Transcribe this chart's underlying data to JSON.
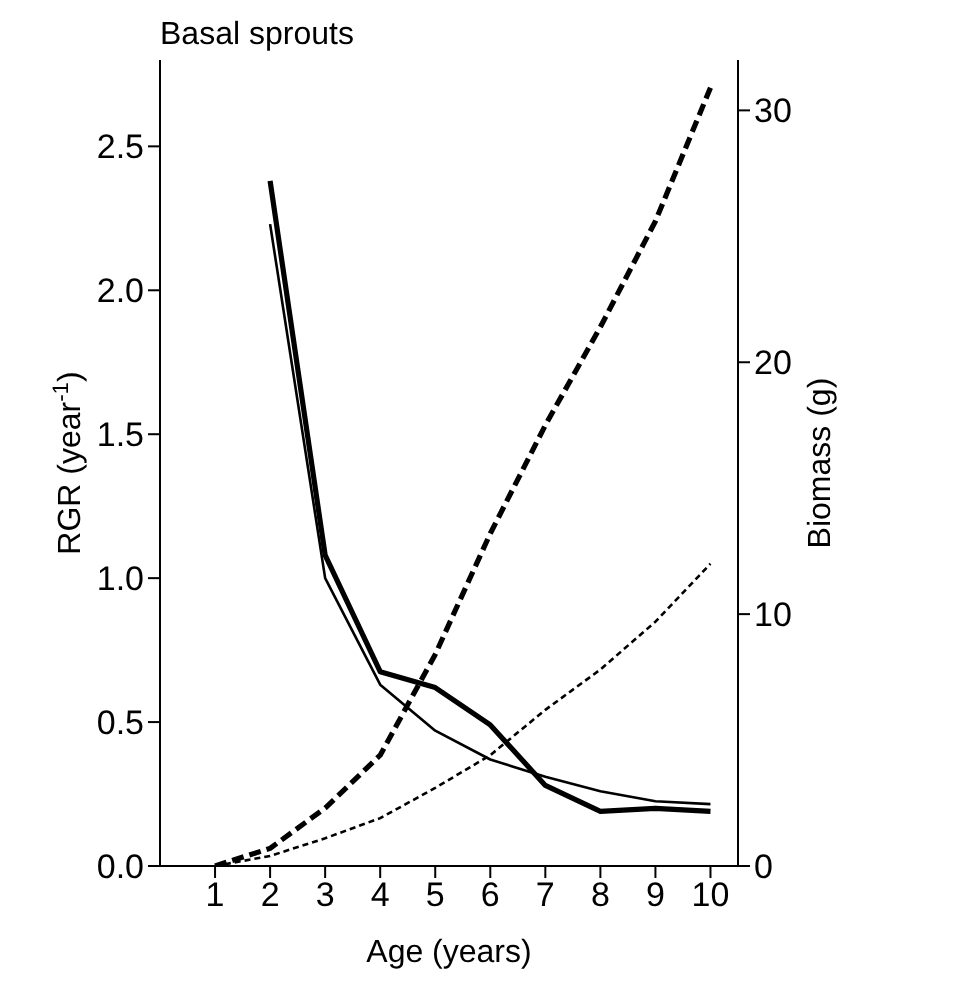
{
  "chart_data": {
    "type": "line",
    "title": "Basal sprouts",
    "xlabel": "Age (years)",
    "ylabel": "RGR (year$^{-1}$)",
    "y2label": "Biomass (g)",
    "x": [
      1,
      2,
      3,
      4,
      5,
      6,
      7,
      8,
      9,
      10
    ],
    "xlim": [
      0,
      10.5
    ],
    "xticks": [
      1,
      2,
      3,
      4,
      5,
      6,
      7,
      8,
      9,
      10
    ],
    "ylim": [
      0,
      2.8
    ],
    "yticks": [
      {
        "value": 0,
        "label": "0.0"
      },
      {
        "value": 0.5,
        "label": "0.5"
      },
      {
        "value": 1,
        "label": "1.0"
      },
      {
        "value": 1.5,
        "label": "1.5"
      },
      {
        "value": 2,
        "label": "2.0"
      },
      {
        "value": 2.5,
        "label": "2.5"
      }
    ],
    "y2lim": [
      0,
      32
    ],
    "y2ticks": [
      0,
      10,
      20,
      30
    ],
    "grid": false,
    "marker": "none",
    "series": [
      {
        "color": "#000000",
        "line_style": "solid",
        "values": [
          null,
          2.38,
          1.08,
          0.675,
          0.62,
          0.49,
          0.28,
          0.19,
          0.2,
          0.19
        ]
      },
      {
        "color": "#000000",
        "line_style": "solid",
        "values": [
          null,
          2.23,
          1.0,
          0.63,
          0.47,
          0.37,
          0.31,
          0.26,
          0.225,
          0.215
        ]
      },
      {
        "color": "#000000",
        "line_style": "dashed",
        "axis": "y2",
        "values": [
          0,
          0.7,
          2.3,
          4.4,
          8.4,
          13.2,
          17.5,
          21.4,
          25.6,
          30.9
        ]
      },
      {
        "color": "#000000",
        "line_style": "dashed",
        "axis": "y2",
        "values": [
          0,
          0.4,
          1.1,
          1.9,
          3.1,
          4.4,
          6.2,
          7.8,
          9.7,
          12.0
        ]
      }
    ]
  }
}
